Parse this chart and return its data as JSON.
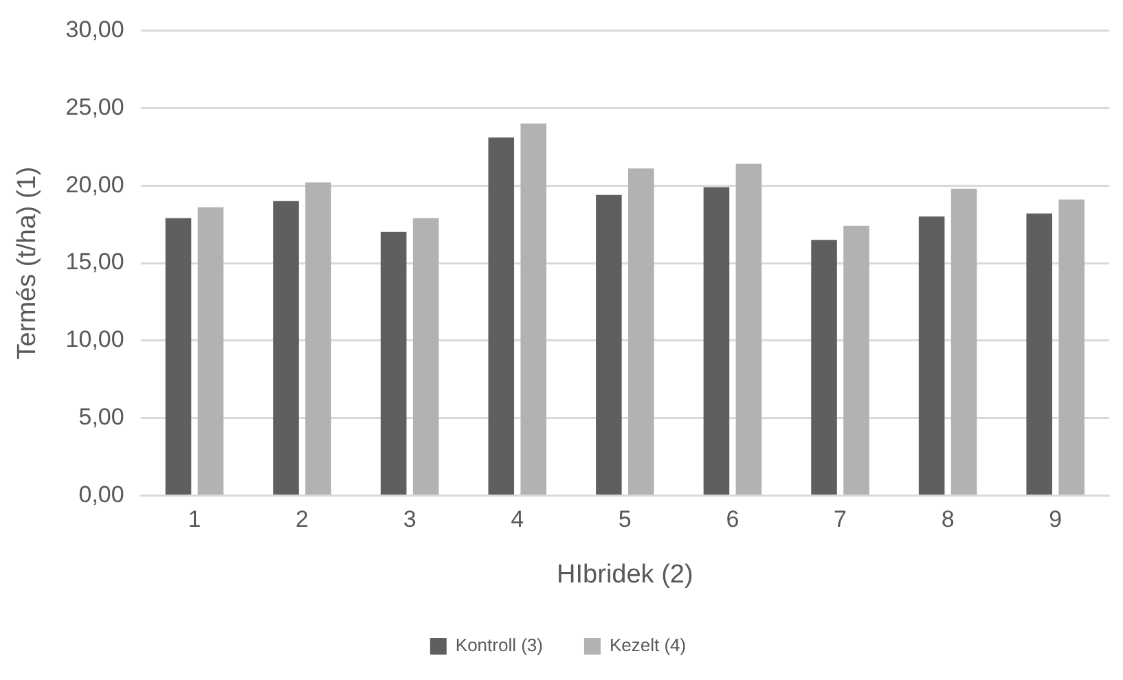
{
  "chart_data": {
    "type": "bar",
    "xlabel": "HIbridek (2)",
    "ylabel": "Termés (t/ha) (1)",
    "categories": [
      "1",
      "2",
      "3",
      "4",
      "5",
      "6",
      "7",
      "8",
      "9"
    ],
    "series": [
      {
        "name": "Kontroll (3)",
        "color": "#5f5f5f",
        "values": [
          17.9,
          19.0,
          17.0,
          23.1,
          19.4,
          19.9,
          16.5,
          18.0,
          18.2
        ]
      },
      {
        "name": "Kezelt (4)",
        "color": "#b2b2b2",
        "values": [
          18.6,
          20.2,
          17.9,
          24.0,
          21.1,
          21.4,
          17.4,
          19.8,
          19.1
        ]
      }
    ],
    "ylim": [
      0,
      30
    ],
    "yticks": [
      {
        "value": 0,
        "label": "0,00"
      },
      {
        "value": 5,
        "label": "5,00"
      },
      {
        "value": 10,
        "label": "10,00"
      },
      {
        "value": 15,
        "label": "15,00"
      },
      {
        "value": 20,
        "label": "20,00"
      },
      {
        "value": 25,
        "label": "25,00"
      },
      {
        "value": 30,
        "label": "30,00"
      }
    ],
    "grid": "y",
    "legend": "bottom"
  }
}
